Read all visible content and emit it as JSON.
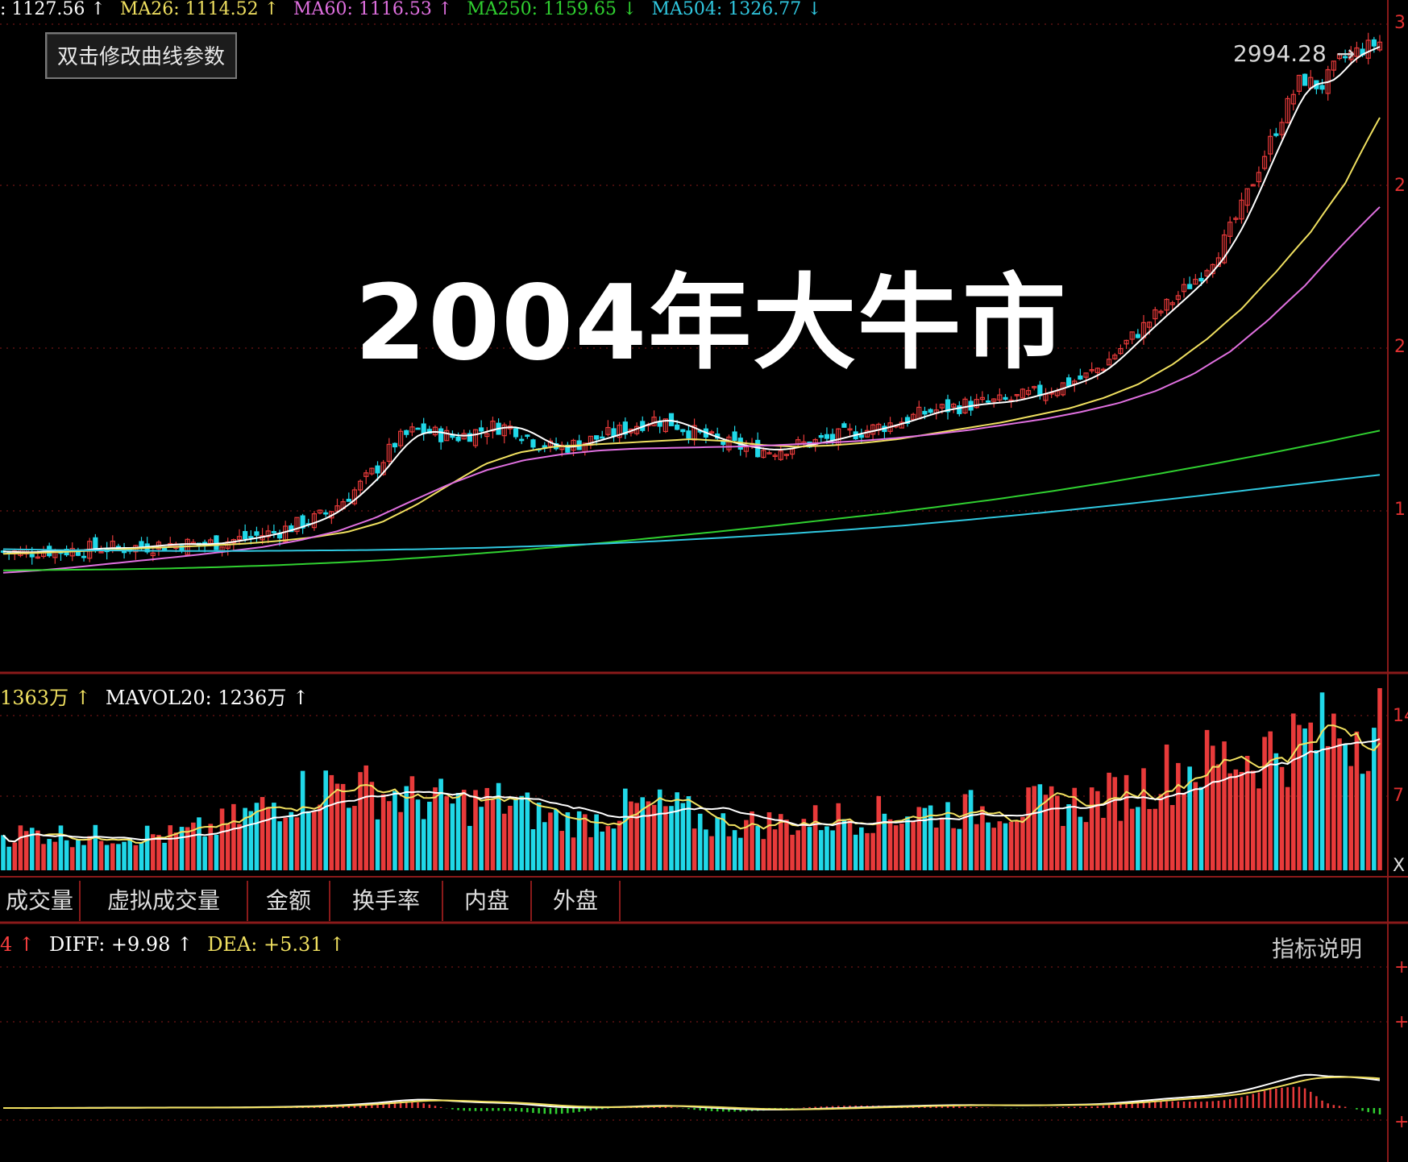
{
  "ma_legend": [
    {
      "text": ": 1127.56 ↑",
      "color": "#ffffff"
    },
    {
      "text": "MA26: 1114.52 ↑",
      "color": "#f0e060"
    },
    {
      "text": "MA60: 1116.53 ↑",
      "color": "#e070e0"
    },
    {
      "text": "MA250: 1159.65 ↓",
      "color": "#30d030"
    },
    {
      "text": "MA504: 1326.77 ↓",
      "color": "#30c8e0"
    }
  ],
  "param_button": "双击修改曲线参数",
  "overlay_title": "2004年大牛市",
  "price_marker": "2994.28",
  "price_marker_arrow": "→",
  "vol_legend": [
    {
      "text": "1363万 ↑",
      "color": "#f0e060"
    },
    {
      "text": "MAVOL20: 1236万 ↑",
      "color": "#ffffff"
    }
  ],
  "tabs": [
    "成交量",
    "虚拟成交量",
    "金额",
    "换手率",
    "内盘",
    "外盘"
  ],
  "macd_legend": [
    {
      "text": "4 ↑",
      "color": "#ff4040"
    },
    {
      "text": "DIFF: +9.98 ↑",
      "color": "#ffffff"
    },
    {
      "text": "DEA: +5.31 ↑",
      "color": "#f0e060"
    }
  ],
  "indicator_help": "指标说明",
  "axis_fragments": {
    "price": [
      "3",
      "2",
      "2",
      "1"
    ],
    "volume": [
      "14",
      "7",
      "X"
    ],
    "macd": [
      "+",
      "+",
      "+"
    ]
  },
  "colors": {
    "up": "#e83a3a",
    "down": "#20d8e8",
    "grid": "#8a1a1a",
    "ma_white": "#ffffff",
    "ma_yellow": "#f0e060",
    "ma_pink": "#e070e0",
    "ma_green": "#30d030",
    "ma_cyan": "#30c8e0",
    "macd_pos": "#e83a3a",
    "macd_neg": "#30d030"
  },
  "chart_data": [
    {
      "type": "candlestick",
      "title": "",
      "note": "price panel; values estimated from the picture",
      "close_path": [
        1155,
        1152,
        1158,
        1156,
        1160,
        1163,
        1162,
        1166,
        1170,
        1172,
        1170,
        1175,
        1182,
        1190,
        1200,
        1215,
        1230,
        1260,
        1300,
        1350,
        1420,
        1450,
        1440,
        1430,
        1445,
        1460,
        1455,
        1420,
        1400,
        1410,
        1425,
        1440,
        1460,
        1480,
        1470,
        1445,
        1425,
        1410,
        1400,
        1395,
        1405,
        1415,
        1425,
        1440,
        1450,
        1465,
        1480,
        1500,
        1510,
        1520,
        1525,
        1530,
        1545,
        1560,
        1580,
        1600,
        1640,
        1700,
        1760,
        1820,
        1880,
        1950,
        2050,
        2200,
        2400,
        2600,
        2800,
        2750,
        2900,
        2950,
        2994
      ],
      "ma_series": [
        {
          "name": "MA26",
          "values_path": [
            1150,
            1152,
            1155,
            1158,
            1162,
            1165,
            1168,
            1172,
            1178,
            1186,
            1198,
            1220,
            1260,
            1310,
            1360,
            1390,
            1405,
            1410,
            1415,
            1420,
            1425,
            1420,
            1410,
            1405,
            1408,
            1415,
            1425,
            1440,
            1455,
            1470,
            1490,
            1510,
            1540,
            1580,
            1640,
            1720,
            1820,
            1950,
            2100,
            2300,
            2600
          ]
        },
        {
          "name": "MA60",
          "values_path": [
            1110,
            1115,
            1122,
            1130,
            1138,
            1146,
            1155,
            1165,
            1180,
            1200,
            1230,
            1270,
            1310,
            1345,
            1370,
            1385,
            1395,
            1400,
            1402,
            1404,
            1406,
            1410,
            1415,
            1420,
            1428,
            1438,
            1450,
            1465,
            1480,
            1500,
            1525,
            1560,
            1610,
            1680,
            1780,
            1900,
            2050,
            2200
          ]
        },
        {
          "name": "MA250",
          "values_path": [
            1115,
            1116,
            1117,
            1119,
            1122,
            1126,
            1131,
            1137,
            1145,
            1154,
            1164,
            1175,
            1187,
            1199,
            1212,
            1226,
            1240,
            1256,
            1273,
            1292,
            1313,
            1336,
            1361,
            1388,
            1417,
            1448
          ]
        },
        {
          "name": "MA504",
          "values_path": [
            1160,
            1158,
            1157,
            1156,
            1156,
            1157,
            1158,
            1160,
            1163,
            1167,
            1172,
            1178,
            1185,
            1193,
            1202,
            1212,
            1224,
            1237,
            1251,
            1266,
            1282,
            1299,
            1316,
            1333
          ]
        }
      ]
    },
    {
      "type": "bar",
      "title": "",
      "note": "volume panel (units: 万)",
      "series": [
        {
          "name": "MAVOL20",
          "last": 1236
        },
        {
          "name": "VOL",
          "last": 1363
        }
      ]
    },
    {
      "type": "bar",
      "title": "",
      "note": "MACD panel",
      "series": [
        {
          "name": "DIFF",
          "last": 9.98
        },
        {
          "name": "DEA",
          "last": 5.31
        }
      ]
    }
  ]
}
